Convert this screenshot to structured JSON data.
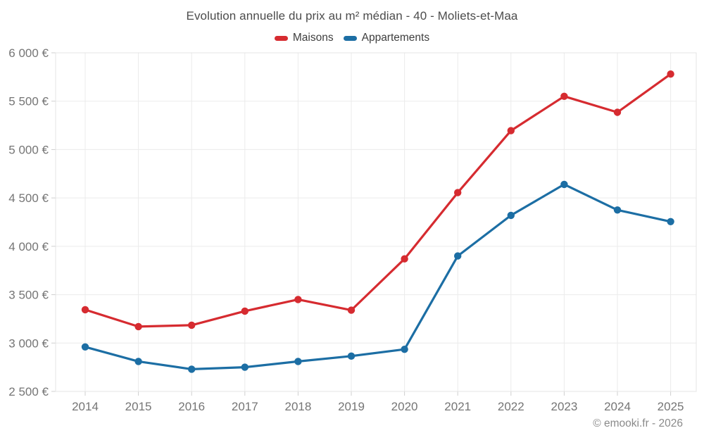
{
  "title": "Evolution annuelle du prix au m² médian - 40 - Moliets-et-Maa",
  "footer": "© emooki.fr - 2026",
  "colors": {
    "maisons": "#d62b30",
    "appartements": "#1c6ea4",
    "grid": "#ebebeb",
    "border": "#e4e4e4",
    "tick": "#cfcfcf",
    "axis_text": "#757575",
    "title_text": "#4c4c4c",
    "legend_text": "#3e3e3e",
    "footer_text": "#8a8a8a"
  },
  "chart_data": {
    "type": "line",
    "title": "Evolution annuelle du prix au m² médian - 40 - Moliets-et-Maa",
    "categories": [
      "2014",
      "2015",
      "2016",
      "2017",
      "2018",
      "2019",
      "2020",
      "2021",
      "2022",
      "2023",
      "2024",
      "2025"
    ],
    "series": [
      {
        "name": "Maisons",
        "color": "#d62b30",
        "values": [
          3345,
          3170,
          3185,
          3330,
          3450,
          3340,
          3870,
          4555,
          5195,
          5550,
          5385,
          5780
        ]
      },
      {
        "name": "Appartements",
        "color": "#1c6ea4",
        "values": [
          2960,
          2810,
          2730,
          2750,
          2810,
          2865,
          2935,
          3900,
          4320,
          4640,
          4375,
          4255
        ]
      }
    ],
    "xlabel": "",
    "ylabel": "",
    "ylim": [
      2500,
      6000
    ],
    "ytick_step": 500,
    "ytick_suffix": " €",
    "grid": true,
    "legend_position": "top"
  }
}
